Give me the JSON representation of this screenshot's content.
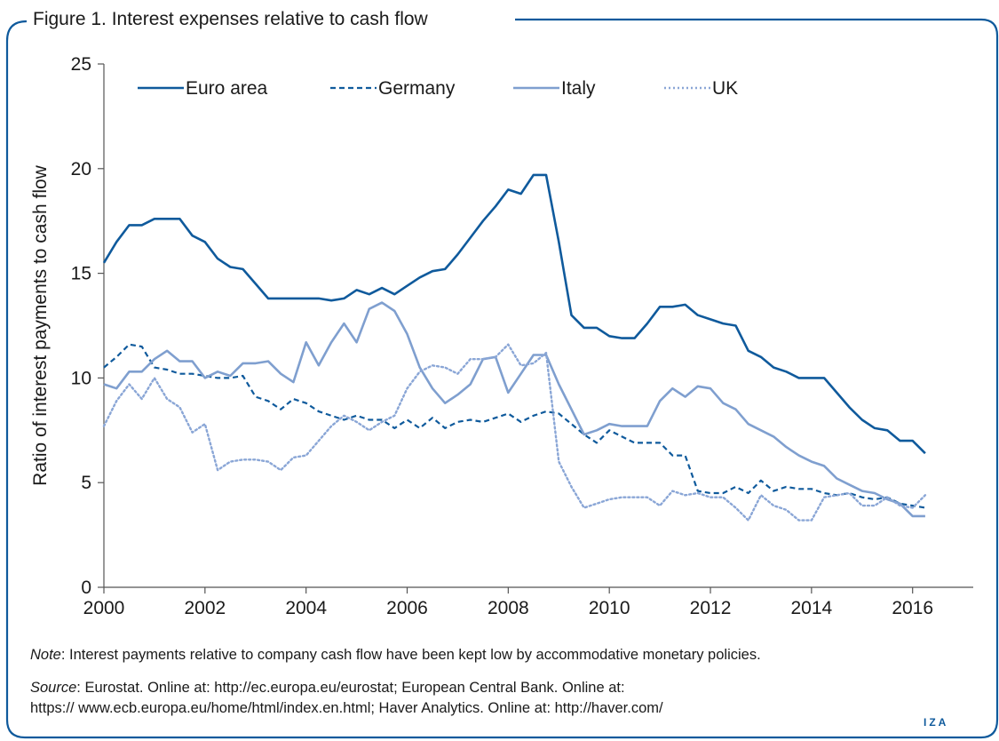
{
  "figure": {
    "title": "Figure 1. Interest expenses relative to cash flow",
    "note_label": "Note",
    "note_text": ": Interest payments relative to company cash flow have been kept low by accommodative monetary policies.",
    "source_label": "Source",
    "source_line1": ": Eurostat. Online at: http://ec.europa.eu/eurostat; European Central Bank. Online at:",
    "source_line2": "https:// www.ecb.europa.eu/home/html/index.en.html; Haver Analytics. Online at: http://haver.com/",
    "logo": "IZA"
  },
  "colors": {
    "frame": "#0f5a9c",
    "euro_area": "#0f5a9c",
    "germany": "#0f5a9c",
    "italy": "#7f9fcf",
    "uk": "#8aa6d6"
  },
  "chart_data": {
    "type": "line",
    "title": "",
    "xlabel": "",
    "ylabel": "Ratio of interest payments to cash flow",
    "xlim": [
      2000,
      2017.2
    ],
    "ylim": [
      0,
      25
    ],
    "x_ticks": [
      2000,
      2002,
      2004,
      2006,
      2008,
      2010,
      2012,
      2014,
      2016
    ],
    "y_ticks": [
      0,
      5,
      10,
      15,
      20,
      25
    ],
    "grid": false,
    "legend_position": "top",
    "series": [
      {
        "name": "Euro area",
        "style": "solid",
        "color": "#0f5a9c",
        "x": [
          2000.0,
          2000.25,
          2000.5,
          2000.75,
          2001.0,
          2001.25,
          2001.5,
          2001.75,
          2002.0,
          2002.25,
          2002.5,
          2002.75,
          2003.0,
          2003.25,
          2003.5,
          2003.75,
          2004.0,
          2004.25,
          2004.5,
          2004.75,
          2005.0,
          2005.25,
          2005.5,
          2005.75,
          2006.0,
          2006.25,
          2006.5,
          2006.75,
          2007.0,
          2007.25,
          2007.5,
          2007.75,
          2008.0,
          2008.25,
          2008.5,
          2008.75,
          2009.0,
          2009.25,
          2009.5,
          2009.75,
          2010.0,
          2010.25,
          2010.5,
          2010.75,
          2011.0,
          2011.25,
          2011.5,
          2011.75,
          2012.0,
          2012.25,
          2012.5,
          2012.75,
          2013.0,
          2013.25,
          2013.5,
          2013.75,
          2014.0,
          2014.25,
          2014.5,
          2014.75,
          2015.0,
          2015.25,
          2015.5,
          2015.75,
          2016.0,
          2016.25
        ],
        "y": [
          15.5,
          16.5,
          17.3,
          17.3,
          17.6,
          17.6,
          17.6,
          16.8,
          16.5,
          15.7,
          15.3,
          15.2,
          14.5,
          13.8,
          13.8,
          13.8,
          13.8,
          13.8,
          13.7,
          13.8,
          14.2,
          14.0,
          14.3,
          14.0,
          14.4,
          14.8,
          15.1,
          15.2,
          15.9,
          16.7,
          17.5,
          18.2,
          19.0,
          18.8,
          19.7,
          19.7,
          16.5,
          13.0,
          12.4,
          12.4,
          12.0,
          11.9,
          11.9,
          12.6,
          13.4,
          13.4,
          13.5,
          13.0,
          12.8,
          12.6,
          12.5,
          11.3,
          11.0,
          10.5,
          10.3,
          10.0,
          10.0,
          10.0,
          9.3,
          8.6,
          8.0,
          7.6,
          7.5,
          7.0,
          7.0,
          6.4
        ]
      },
      {
        "name": "Germany",
        "style": "dashed",
        "color": "#0f5a9c",
        "x": [
          2000.0,
          2000.25,
          2000.5,
          2000.75,
          2001.0,
          2001.25,
          2001.5,
          2001.75,
          2002.0,
          2002.25,
          2002.5,
          2002.75,
          2003.0,
          2003.25,
          2003.5,
          2003.75,
          2004.0,
          2004.25,
          2004.5,
          2004.75,
          2005.0,
          2005.25,
          2005.5,
          2005.75,
          2006.0,
          2006.25,
          2006.5,
          2006.75,
          2007.0,
          2007.25,
          2007.5,
          2007.75,
          2008.0,
          2008.25,
          2008.5,
          2008.75,
          2009.0,
          2009.25,
          2009.5,
          2009.75,
          2010.0,
          2010.25,
          2010.5,
          2010.75,
          2011.0,
          2011.25,
          2011.5,
          2011.75,
          2012.0,
          2012.25,
          2012.5,
          2012.75,
          2013.0,
          2013.25,
          2013.5,
          2013.75,
          2014.0,
          2014.25,
          2014.5,
          2014.75,
          2015.0,
          2015.25,
          2015.5,
          2015.75,
          2016.0,
          2016.25
        ],
        "y": [
          10.5,
          11.0,
          11.6,
          11.5,
          10.5,
          10.4,
          10.2,
          10.2,
          10.1,
          10.0,
          10.0,
          10.1,
          9.1,
          8.9,
          8.5,
          9.0,
          8.8,
          8.4,
          8.2,
          8.0,
          8.2,
          8.0,
          8.0,
          7.6,
          8.0,
          7.6,
          8.1,
          7.6,
          7.9,
          8.0,
          7.9,
          8.1,
          8.3,
          7.9,
          8.2,
          8.4,
          8.3,
          7.8,
          7.3,
          6.9,
          7.5,
          7.2,
          6.9,
          6.9,
          6.9,
          6.3,
          6.3,
          4.6,
          4.5,
          4.5,
          4.8,
          4.5,
          5.1,
          4.6,
          4.8,
          4.7,
          4.7,
          4.5,
          4.4,
          4.5,
          4.3,
          4.2,
          4.3,
          4.0,
          3.9,
          3.8
        ]
      },
      {
        "name": "Italy",
        "style": "solid",
        "color": "#7f9fcf",
        "x": [
          2000.0,
          2000.25,
          2000.5,
          2000.75,
          2001.0,
          2001.25,
          2001.5,
          2001.75,
          2002.0,
          2002.25,
          2002.5,
          2002.75,
          2003.0,
          2003.25,
          2003.5,
          2003.75,
          2004.0,
          2004.25,
          2004.5,
          2004.75,
          2005.0,
          2005.25,
          2005.5,
          2005.75,
          2006.0,
          2006.25,
          2006.5,
          2006.75,
          2007.0,
          2007.25,
          2007.5,
          2007.75,
          2008.0,
          2008.25,
          2008.5,
          2008.75,
          2009.0,
          2009.25,
          2009.5,
          2009.75,
          2010.0,
          2010.25,
          2010.5,
          2010.75,
          2011.0,
          2011.25,
          2011.5,
          2011.75,
          2012.0,
          2012.25,
          2012.5,
          2012.75,
          2013.0,
          2013.25,
          2013.5,
          2013.75,
          2014.0,
          2014.25,
          2014.5,
          2014.75,
          2015.0,
          2015.25,
          2015.5,
          2015.75,
          2016.0,
          2016.25
        ],
        "y": [
          9.7,
          9.5,
          10.3,
          10.3,
          10.9,
          11.3,
          10.8,
          10.8,
          10.0,
          10.3,
          10.1,
          10.7,
          10.7,
          10.8,
          10.2,
          9.8,
          11.7,
          10.6,
          11.7,
          12.6,
          11.7,
          13.3,
          13.6,
          13.2,
          12.1,
          10.5,
          9.5,
          8.8,
          9.2,
          9.7,
          10.9,
          11.0,
          9.3,
          10.2,
          11.1,
          11.1,
          9.7,
          8.5,
          7.3,
          7.5,
          7.8,
          7.7,
          7.7,
          7.7,
          8.9,
          9.5,
          9.1,
          9.6,
          9.5,
          8.8,
          8.5,
          7.8,
          7.5,
          7.2,
          6.7,
          6.3,
          6.0,
          5.8,
          5.2,
          4.9,
          4.6,
          4.5,
          4.2,
          4.0,
          3.4,
          3.4
        ]
      },
      {
        "name": "UK",
        "style": "dotted",
        "color": "#8aa6d6",
        "x": [
          2000.0,
          2000.25,
          2000.5,
          2000.75,
          2001.0,
          2001.25,
          2001.5,
          2001.75,
          2002.0,
          2002.25,
          2002.5,
          2002.75,
          2003.0,
          2003.25,
          2003.5,
          2003.75,
          2004.0,
          2004.25,
          2004.5,
          2004.75,
          2005.0,
          2005.25,
          2005.5,
          2005.75,
          2006.0,
          2006.25,
          2006.5,
          2006.75,
          2007.0,
          2007.25,
          2007.5,
          2007.75,
          2008.0,
          2008.25,
          2008.5,
          2008.75,
          2009.0,
          2009.25,
          2009.5,
          2009.75,
          2010.0,
          2010.25,
          2010.5,
          2010.75,
          2011.0,
          2011.25,
          2011.5,
          2011.75,
          2012.0,
          2012.25,
          2012.5,
          2012.75,
          2013.0,
          2013.25,
          2013.5,
          2013.75,
          2014.0,
          2014.25,
          2014.5,
          2014.75,
          2015.0,
          2015.25,
          2015.5,
          2015.75,
          2016.0,
          2016.25
        ],
        "y": [
          7.7,
          8.9,
          9.7,
          9.0,
          10.0,
          9.0,
          8.6,
          7.4,
          7.8,
          5.6,
          6.0,
          6.1,
          6.1,
          6.0,
          5.6,
          6.2,
          6.3,
          7.0,
          7.7,
          8.2,
          7.9,
          7.5,
          7.9,
          8.2,
          9.5,
          10.3,
          10.6,
          10.5,
          10.2,
          10.9,
          10.9,
          11.0,
          11.6,
          10.6,
          10.7,
          11.2,
          6.0,
          4.8,
          3.8,
          4.0,
          4.2,
          4.3,
          4.3,
          4.3,
          3.9,
          4.6,
          4.4,
          4.5,
          4.3,
          4.3,
          3.8,
          3.2,
          4.4,
          3.9,
          3.7,
          3.2,
          3.2,
          4.3,
          4.4,
          4.5,
          3.9,
          3.9,
          4.3,
          3.9,
          3.8,
          4.4
        ]
      }
    ]
  }
}
